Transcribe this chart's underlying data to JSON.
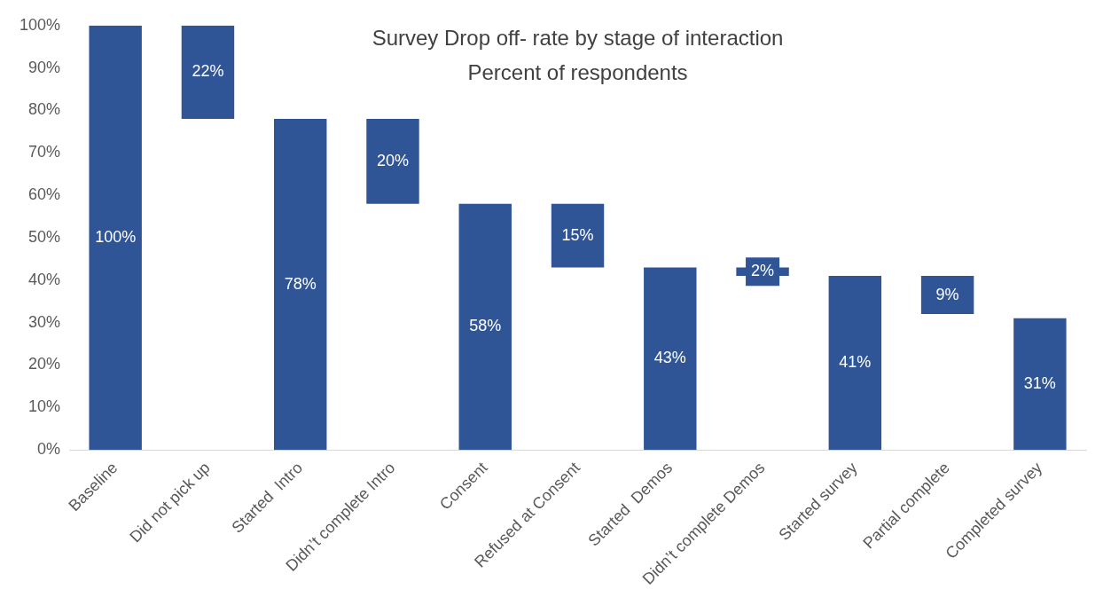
{
  "chart_data": {
    "type": "bar",
    "title": "Survey Drop off- rate by stage of interaction",
    "subtitle": "Percent of respondents",
    "categories": [
      "Baseline",
      "Did not pick up",
      "Started  Intro",
      "Didn’t complete Intro",
      "Consent",
      "Refused at Consent",
      "Started  Demos",
      "Didn’t complete Demos",
      "Started survey",
      "Partial complete",
      "Completed survey"
    ],
    "values": [
      100,
      22,
      78,
      20,
      58,
      15,
      43,
      2,
      41,
      9,
      31
    ],
    "base": [
      0,
      78,
      0,
      58,
      0,
      43,
      0,
      41,
      0,
      32,
      0
    ],
    "value_labels": [
      "100%",
      "22%",
      "78%",
      "20%",
      "58%",
      "15%",
      "43%",
      "2%",
      "41%",
      "9%",
      "31%"
    ],
    "color": "#2f5597",
    "ylim": [
      0,
      100
    ],
    "yticks": [
      {
        "value": 0,
        "label": "0%"
      },
      {
        "value": 10,
        "label": "10%"
      },
      {
        "value": 20,
        "label": "20%"
      },
      {
        "value": 30,
        "label": "30%"
      },
      {
        "value": 40,
        "label": "40%"
      },
      {
        "value": 50,
        "label": "50%"
      },
      {
        "value": 60,
        "label": "60%"
      },
      {
        "value": 70,
        "label": "70%"
      },
      {
        "value": 80,
        "label": "80%"
      },
      {
        "value": 90,
        "label": "90%"
      },
      {
        "value": 100,
        "label": "100%"
      }
    ],
    "grid": false,
    "legend": false
  }
}
